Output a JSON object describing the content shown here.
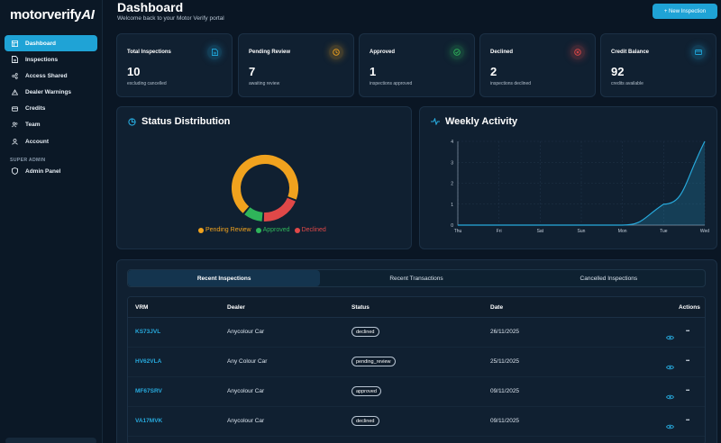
{
  "app": {
    "logo_text": "motorverify",
    "logo_ai": "AI"
  },
  "sidebar": {
    "items": [
      {
        "label": "Dashboard",
        "icon": "dashboard-icon",
        "active": true
      },
      {
        "label": "Inspections",
        "icon": "document-icon",
        "active": false
      },
      {
        "label": "Access Shared",
        "icon": "share-icon",
        "active": false
      },
      {
        "label": "Dealer Warnings",
        "icon": "warning-icon",
        "active": false
      },
      {
        "label": "Credits",
        "icon": "credit-card-icon",
        "active": false
      },
      {
        "label": "Team",
        "icon": "users-icon",
        "active": false
      },
      {
        "label": "Account",
        "icon": "user-icon",
        "active": false
      }
    ],
    "section_label": "SUPER ADMIN",
    "admin_items": [
      {
        "label": "Admin Panel",
        "icon": "shield-icon"
      }
    ]
  },
  "header": {
    "title": "Dashboard",
    "subtitle": "Welcome back to your Motor Verify portal",
    "new_button": "+ New Inspection"
  },
  "stats": [
    {
      "title": "Total Inspections",
      "value": "10",
      "sub": "excluding cancelled",
      "icon": "document-icon",
      "color": "#1fa3d6"
    },
    {
      "title": "Pending Review",
      "value": "7",
      "sub": "awaiting review",
      "icon": "clock-icon",
      "color": "#f0a21e"
    },
    {
      "title": "Approved",
      "value": "1",
      "sub": "inspections approved",
      "icon": "check-circle-icon",
      "color": "#2fb45a"
    },
    {
      "title": "Declined",
      "value": "2",
      "sub": "inspections declined",
      "icon": "x-circle-icon",
      "color": "#e04848"
    },
    {
      "title": "Credit Balance",
      "value": "92",
      "sub": "credits available",
      "icon": "credit-card-icon",
      "color": "#1fa3d6"
    }
  ],
  "status_panel": {
    "title": "Status Distribution",
    "legend": [
      {
        "label": "Pending Review",
        "color": "#f0a21e"
      },
      {
        "label": "Approved",
        "color": "#2fb45a"
      },
      {
        "label": "Declined",
        "color": "#e04848"
      }
    ]
  },
  "weekly_panel": {
    "title": "Weekly Activity"
  },
  "chart_data": [
    {
      "type": "pie",
      "categories": [
        "Pending Review",
        "Approved",
        "Declined"
      ],
      "values": [
        7,
        1,
        2
      ],
      "colors": [
        "#f0a21e",
        "#2fb45a",
        "#e04848"
      ],
      "donut": true,
      "legend": "bottom"
    },
    {
      "type": "area",
      "categories": [
        "Thu",
        "Fri",
        "Sat",
        "Sun",
        "Mon",
        "Tue",
        "Wed"
      ],
      "values": [
        0,
        0,
        0,
        0,
        0,
        1,
        4
      ],
      "yticks": [
        0,
        1,
        2,
        3,
        4
      ],
      "ylim": [
        0,
        4
      ],
      "color": "#27a9dc",
      "grid": true
    }
  ],
  "tabs": [
    {
      "label": "Recent Inspections",
      "active": true
    },
    {
      "label": "Recent Transactions",
      "active": false
    },
    {
      "label": "Cancelled Inspections",
      "active": false
    }
  ],
  "table": {
    "headers": {
      "vrm": "VRM",
      "dealer": "Dealer",
      "status": "Status",
      "date": "Date",
      "actions": "Actions"
    },
    "rows": [
      {
        "vrm": "KS73JVL",
        "dealer": "Anycolour Car",
        "status": "declined",
        "date": "26/11/2025"
      },
      {
        "vrm": "HV62VLA",
        "dealer": "Any Colour Car",
        "status": "pending_review",
        "date": "25/11/2025"
      },
      {
        "vrm": "MF67SRV",
        "dealer": "Anycolour Car",
        "status": "approved",
        "date": "09/11/2025"
      },
      {
        "vrm": "VA17MVK",
        "dealer": "Anycolour Car",
        "status": "declined",
        "date": "09/11/2025"
      }
    ],
    "more_symbol": "•••"
  }
}
